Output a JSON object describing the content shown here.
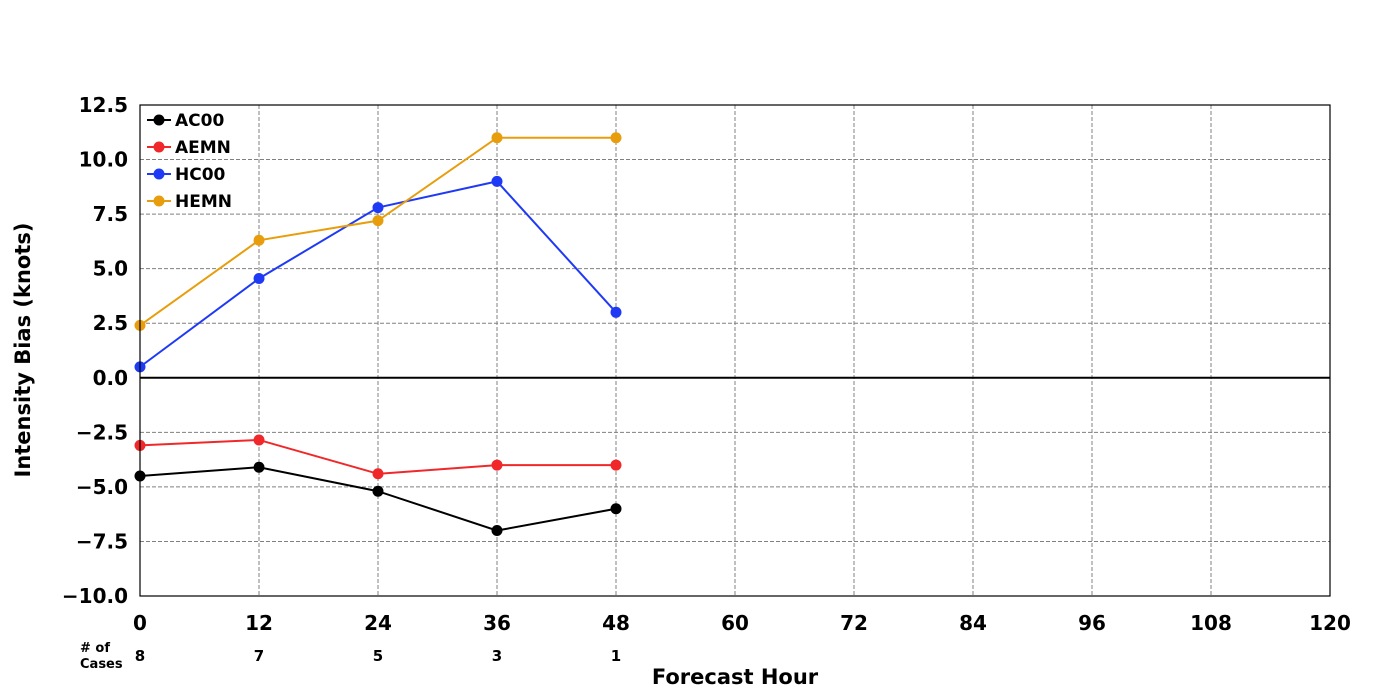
{
  "chart_data": {
    "type": "line",
    "title": "",
    "xlabel": "Forecast Hour",
    "ylabel": "Intensity Bias (knots)",
    "xlim": [
      0,
      120
    ],
    "ylim": [
      -10,
      12.5
    ],
    "x_ticks": [
      0,
      12,
      24,
      36,
      48,
      60,
      72,
      84,
      96,
      108,
      120
    ],
    "y_ticks": [
      -10.0,
      -7.5,
      -5.0,
      -2.5,
      0.0,
      2.5,
      5.0,
      7.5,
      10.0,
      12.5
    ],
    "y_tick_labels": [
      "−10.0",
      "−7.5",
      "−5.0",
      "−2.5",
      "0.0",
      "2.5",
      "5.0",
      "7.5",
      "10.0",
      "12.5"
    ],
    "grid": true,
    "legend_position": "top-left",
    "x": [
      0,
      12,
      24,
      36,
      48
    ],
    "series": [
      {
        "name": "AC00",
        "color": "#000000",
        "values": [
          -4.5,
          -4.1,
          -5.2,
          -7.0,
          -6.0
        ]
      },
      {
        "name": "AEMN",
        "color": "#f0282a",
        "values": [
          -3.1,
          -2.85,
          -4.4,
          -4.0,
          -4.0
        ]
      },
      {
        "name": "HC00",
        "color": "#1f3af5",
        "values": [
          0.5,
          4.55,
          7.8,
          9.0,
          3.0
        ]
      },
      {
        "name": "HEMN",
        "color": "#e89e0c",
        "values": [
          2.4,
          6.3,
          7.2,
          11.0,
          11.0
        ]
      }
    ],
    "cases": {
      "label_line1": "# of",
      "label_line2": "Cases",
      "x": [
        0,
        12,
        24,
        36,
        48
      ],
      "counts": [
        "8",
        "7",
        "5",
        "3",
        "1"
      ]
    }
  }
}
